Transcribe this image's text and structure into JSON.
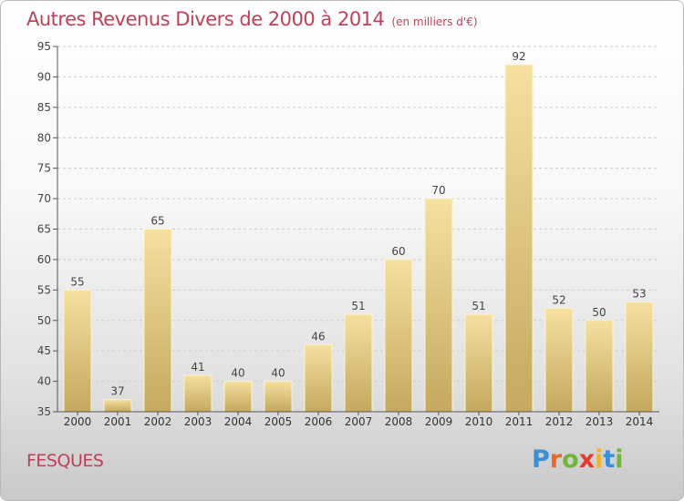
{
  "header": {
    "title": "Autres Revenus Divers de 2000 à 2014",
    "unit": "(en milliers d'€)"
  },
  "footer": {
    "commune": "FESQUES",
    "logo_letters": [
      {
        "ch": "P",
        "color": "#3a8fd6"
      },
      {
        "ch": "r",
        "color": "#e8692a"
      },
      {
        "ch": "o",
        "color": "#72b43c"
      },
      {
        "ch": "x",
        "color": "#e33a2f"
      },
      {
        "ch": "i",
        "color": "#f2b32a"
      },
      {
        "ch": "t",
        "color": "#3a8fd6"
      },
      {
        "ch": "i",
        "color": "#72b43c"
      }
    ]
  },
  "colors": {
    "title": "#c0405a",
    "bar_light": "#f5e0a0",
    "bar_dark": "#c4a95e",
    "grid": "#cccccc"
  },
  "chart_data": {
    "type": "bar",
    "title": "Autres Revenus Divers de 2000 à 2014",
    "subtitle": "(en milliers d'€)",
    "xlabel": "",
    "ylabel": "",
    "categories": [
      "2000",
      "2001",
      "2002",
      "2003",
      "2004",
      "2005",
      "2006",
      "2007",
      "2008",
      "2009",
      "2010",
      "2011",
      "2012",
      "2013",
      "2014"
    ],
    "values": [
      55,
      37,
      65,
      41,
      40,
      40,
      46,
      51,
      60,
      70,
      51,
      92,
      52,
      50,
      53
    ],
    "ylim": [
      35,
      95
    ],
    "yticks": [
      35,
      40,
      45,
      50,
      55,
      60,
      65,
      70,
      75,
      80,
      85,
      90,
      95
    ],
    "grid": true,
    "data_labels": true
  }
}
